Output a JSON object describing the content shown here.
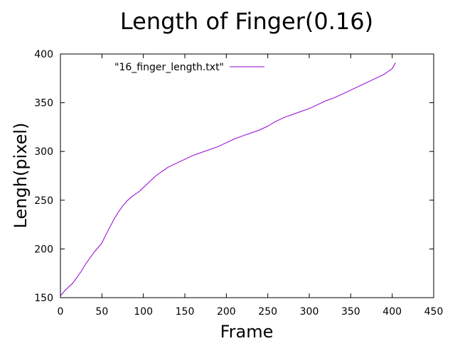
{
  "chart_data": {
    "type": "line",
    "title": "Length of Finger(0.16)",
    "xlabel": "Frame",
    "ylabel": "Lengh(pixel)",
    "xlim": [
      0,
      450
    ],
    "ylim": [
      150,
      400
    ],
    "xticks": [
      0,
      50,
      100,
      150,
      200,
      250,
      300,
      350,
      400,
      450
    ],
    "yticks": [
      150,
      200,
      250,
      300,
      350,
      400
    ],
    "grid": false,
    "legend_position": "top-left inside",
    "series": [
      {
        "name": "\"16_finger_length.txt\"",
        "color": "#9400d3",
        "x": [
          0,
          5,
          10,
          15,
          20,
          25,
          30,
          35,
          40,
          45,
          50,
          55,
          60,
          65,
          70,
          75,
          80,
          85,
          90,
          95,
          100,
          105,
          110,
          115,
          120,
          125,
          130,
          135,
          140,
          145,
          150,
          160,
          170,
          180,
          190,
          200,
          210,
          220,
          230,
          240,
          250,
          260,
          270,
          280,
          290,
          300,
          310,
          320,
          330,
          340,
          350,
          360,
          370,
          380,
          390,
          400,
          404
        ],
        "y": [
          152,
          157,
          161,
          165,
          171,
          177,
          184,
          190,
          196,
          201,
          206,
          215,
          223,
          231,
          238,
          244,
          249,
          253,
          256,
          259,
          263,
          267,
          271,
          275,
          278,
          281,
          284,
          286,
          288,
          290,
          292,
          296,
          299,
          302,
          305,
          309,
          313,
          316,
          319,
          322,
          326,
          331,
          335,
          338,
          341,
          344,
          348,
          352,
          355,
          359,
          363,
          367,
          371,
          375,
          379,
          385,
          391
        ]
      }
    ]
  }
}
